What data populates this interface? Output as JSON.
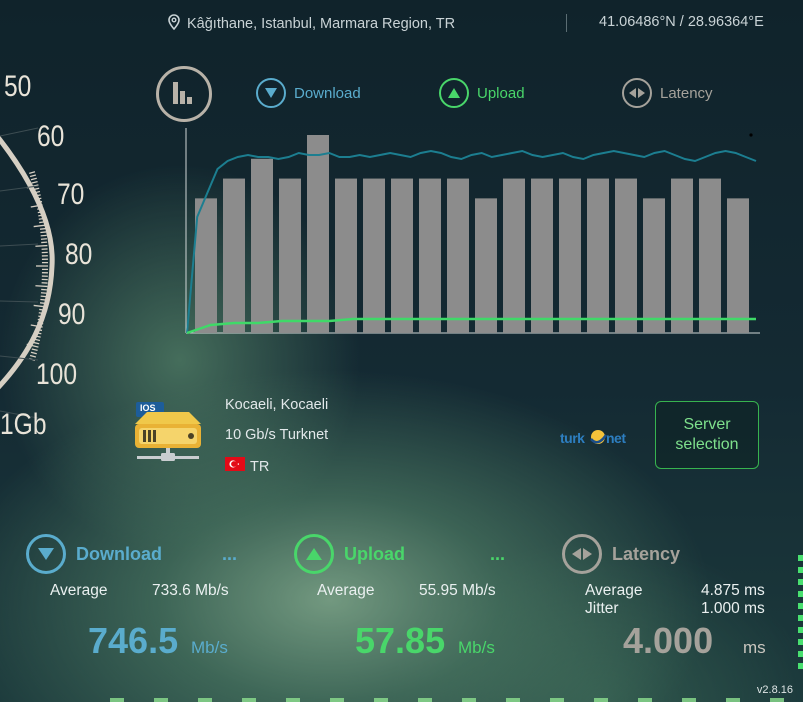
{
  "header": {
    "location": "Kâğıthane, Istanbul, Marmara Region, TR",
    "coordinates": "41.06486°N / 28.96364°E"
  },
  "gauge": {
    "labels": [
      "50",
      "60",
      "70",
      "80",
      "90",
      "100",
      "1Gb"
    ]
  },
  "chart": {
    "legend": {
      "download": "Download",
      "upload": "Upload",
      "latency": "Latency"
    }
  },
  "chart_data": {
    "type": "bar",
    "bar_values": [
      68,
      78,
      88,
      78,
      100,
      78,
      78,
      78,
      78,
      78,
      68,
      78,
      78,
      78,
      78,
      78,
      68,
      78,
      78,
      68
    ],
    "download_line": [
      0,
      58,
      70,
      82,
      86,
      88,
      89,
      88,
      88,
      87,
      88,
      90,
      89,
      89,
      90,
      88,
      88,
      89,
      88,
      89,
      90,
      89,
      88,
      90,
      91,
      90,
      88,
      87,
      89,
      90,
      88,
      89,
      90,
      91,
      89,
      88,
      89,
      90,
      88,
      87,
      89,
      90,
      91,
      90,
      89,
      88,
      90,
      91,
      89,
      87,
      86,
      88,
      90,
      91,
      90,
      88,
      86
    ],
    "upload_line": [
      0,
      4,
      5,
      5,
      6,
      6,
      6,
      7,
      7,
      7,
      7,
      7,
      7,
      7,
      7,
      7,
      7,
      7,
      7,
      7,
      7,
      7,
      7,
      7,
      7
    ],
    "colors": {
      "download": "#1c7e90",
      "upload": "#3fd968",
      "bars": "#8c8c8c"
    }
  },
  "server": {
    "city": "Kocaeli, Kocaeli",
    "provider": "10 Gb/s Turknet",
    "country": "TR",
    "badge": "IOS",
    "brand_logo": "turk.net",
    "select_label_line1": "Server",
    "select_label_line2": "selection"
  },
  "results": {
    "download": {
      "title": "Download",
      "more": "...",
      "avg_label": "Average",
      "avg_value": "733.6 Mb/s",
      "value": "746.5",
      "unit": "Mb/s",
      "color": "#5aaccd"
    },
    "upload": {
      "title": "Upload",
      "more": "...",
      "avg_label": "Average",
      "avg_value": "55.95 Mb/s",
      "value": "57.85",
      "unit": "Mb/s",
      "color": "#49d66a"
    },
    "latency": {
      "title": "Latency",
      "avg_label": "Average",
      "avg_value": "4.875 ms",
      "jitter_label": "Jitter",
      "jitter_value": "1.000 ms",
      "value": "4.000",
      "unit": "ms",
      "color": "#a5a29b"
    }
  },
  "version": "v2.8.16"
}
